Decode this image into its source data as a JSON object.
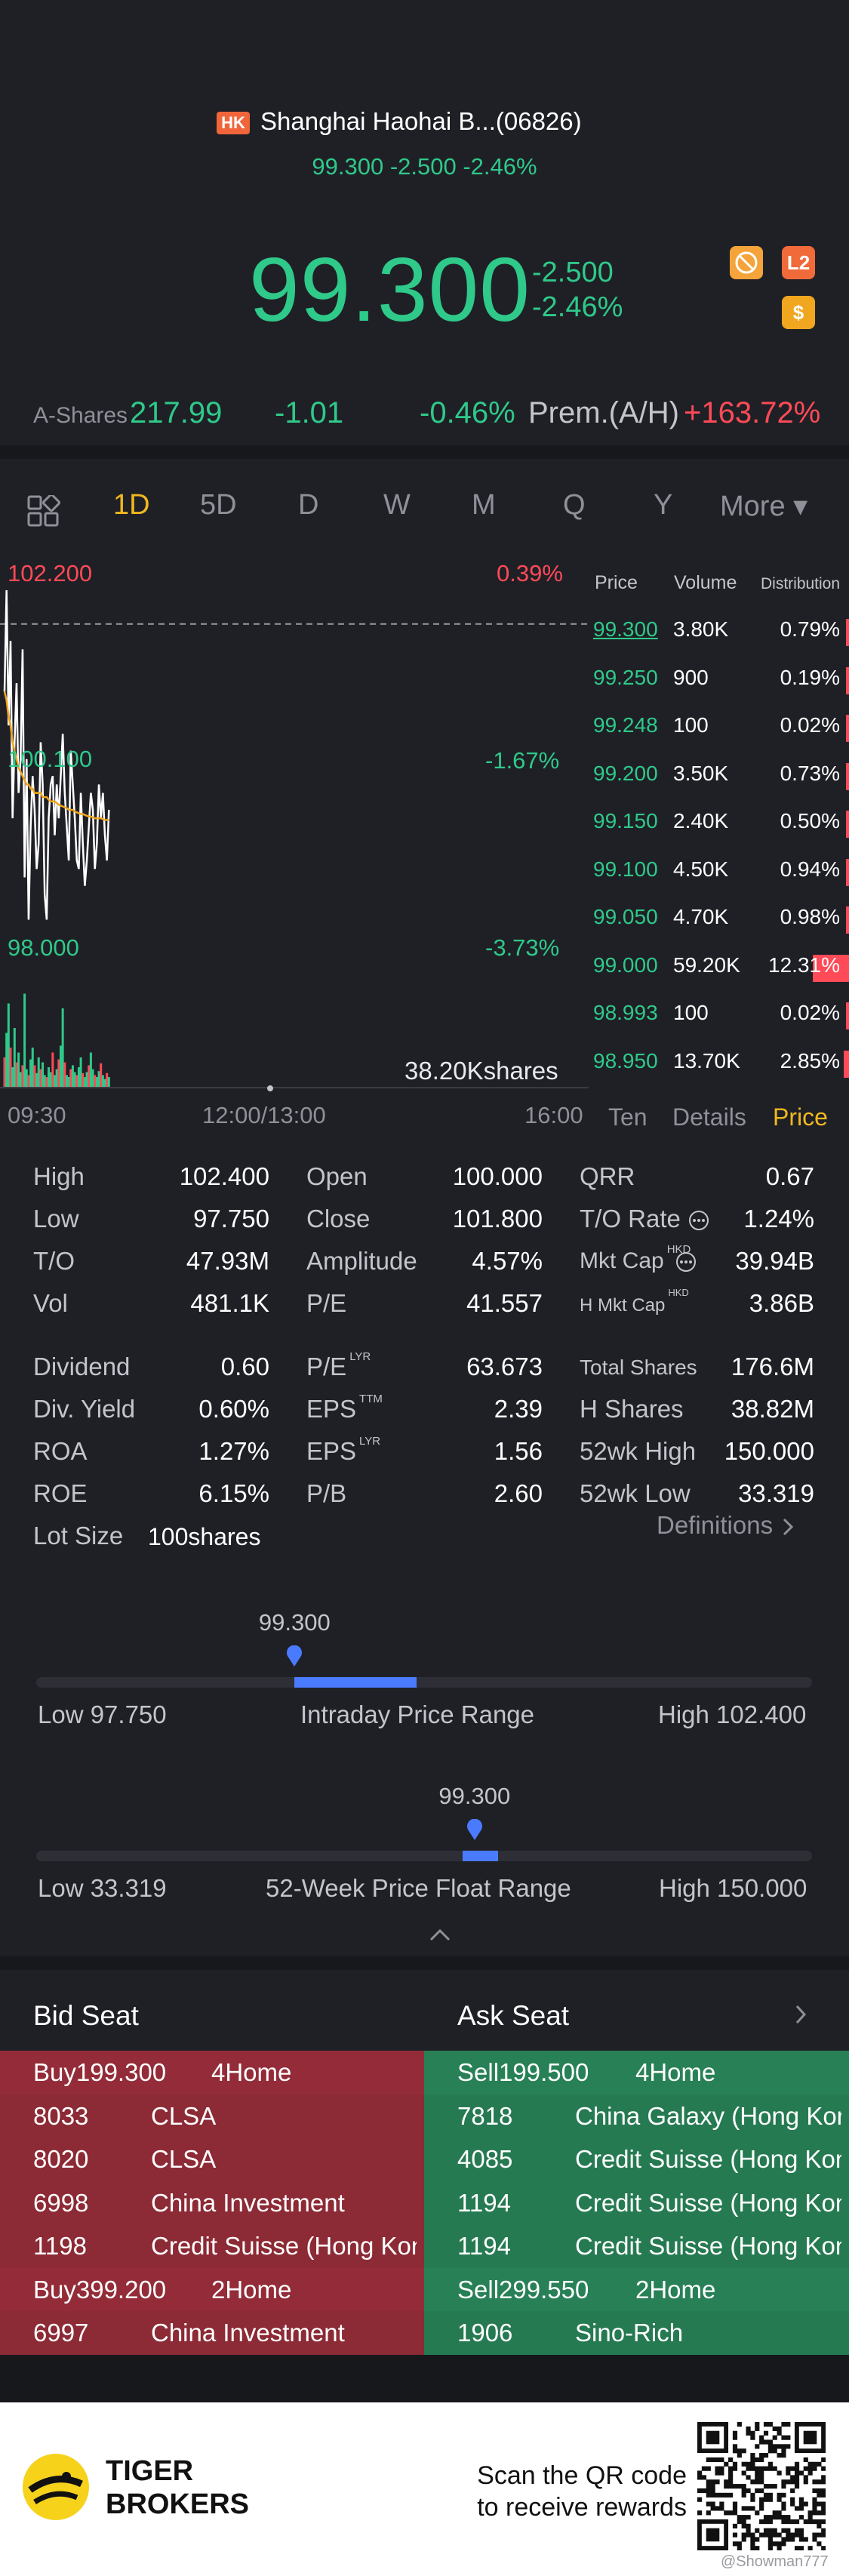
{
  "header": {
    "market_badge": "HK",
    "name": "Shanghai Haohai B...(06826)",
    "sub_quote": "99.300 -2.500 -2.46%",
    "price": "99.300",
    "change": "-2.500",
    "change_pct": "-2.46%",
    "badge_l2": "L2",
    "badge_dollar": "$",
    "ashares_label": "A-Shares",
    "ashares_price": "217.99",
    "ashares_change": "-1.01",
    "ashares_pct": "-0.46%",
    "premium_label": "Prem.(A/H)",
    "premium_value": "+163.72%"
  },
  "tabs": [
    {
      "label": "1D",
      "active": true
    },
    {
      "label": "5D",
      "active": false
    },
    {
      "label": "D",
      "active": false
    },
    {
      "label": "W",
      "active": false
    },
    {
      "label": "M",
      "active": false
    },
    {
      "label": "Q",
      "active": false
    },
    {
      "label": "Y",
      "active": false
    },
    {
      "label": "More ▾",
      "active": false
    }
  ],
  "chart_data": {
    "type": "line",
    "y_labels": {
      "high": "102.200",
      "mid": "100.100",
      "low": "98.000"
    },
    "pct_labels": {
      "high": "0.39%",
      "mid": "-1.67%",
      "low": "-3.73%"
    },
    "time_labels": [
      "09:30",
      "12:00/13:00",
      "16:00"
    ],
    "ylim": [
      98.0,
      102.2
    ],
    "prev_close": 101.8,
    "price_series": [
      101.0,
      102.2,
      100.6,
      101.6,
      99.5,
      100.4,
      101.1,
      99.8,
      100.2,
      101.5,
      98.8,
      100.2,
      98.3,
      99.4,
      100.0,
      99.6,
      98.9,
      99.2,
      100.4,
      99.9,
      98.6,
      98.3,
      99.5,
      99.9,
      100.0,
      99.3,
      99.9,
      99.5,
      100.0,
      100.5,
      99.8,
      99.4,
      99.0,
      100.3,
      99.9,
      99.5,
      99.0,
      98.9,
      99.8,
      99.2,
      98.7,
      99.0,
      99.4,
      99.8,
      99.6,
      98.9,
      99.2,
      99.9,
      99.5,
      99.8,
      99.3,
      99.0,
      99.6
    ],
    "avg_series": [
      101.0,
      100.9,
      100.7,
      100.6,
      100.4,
      100.3,
      100.2,
      100.1,
      100.05,
      100.0,
      99.95,
      99.9,
      99.9,
      99.85,
      99.85,
      99.8,
      99.8,
      99.8,
      99.8,
      99.75,
      99.75,
      99.75,
      99.72,
      99.7,
      99.7,
      99.7,
      99.68,
      99.66,
      99.65,
      99.64,
      99.63,
      99.62,
      99.6,
      99.6,
      99.6,
      99.58,
      99.57,
      99.56,
      99.55,
      99.55,
      99.54,
      99.53,
      99.52,
      99.52,
      99.51,
      99.5,
      99.5,
      99.5,
      99.5,
      99.49,
      99.48,
      99.48,
      99.48
    ],
    "volume_label": "38.20Kshares"
  },
  "orderbook": {
    "headers": {
      "price": "Price",
      "volume": "Volume",
      "distribution": "Distribution"
    },
    "rows": [
      {
        "price": "99.300",
        "volume": "3.80K",
        "dist": "0.79%",
        "frac": 0.03,
        "current": true
      },
      {
        "price": "99.250",
        "volume": "900",
        "dist": "0.19%",
        "frac": 0.01,
        "current": false
      },
      {
        "price": "99.248",
        "volume": "100",
        "dist": "0.02%",
        "frac": 0.005,
        "current": false
      },
      {
        "price": "99.200",
        "volume": "3.50K",
        "dist": "0.73%",
        "frac": 0.03,
        "current": false
      },
      {
        "price": "99.150",
        "volume": "2.40K",
        "dist": "0.50%",
        "frac": 0.02,
        "current": false
      },
      {
        "price": "99.100",
        "volume": "4.50K",
        "dist": "0.94%",
        "frac": 0.035,
        "current": false
      },
      {
        "price": "99.050",
        "volume": "4.70K",
        "dist": "0.98%",
        "frac": 0.035,
        "current": false
      },
      {
        "price": "99.000",
        "volume": "59.20K",
        "dist": "12.31%",
        "frac": 0.4,
        "current": false
      },
      {
        "price": "98.993",
        "volume": "100",
        "dist": "0.02%",
        "frac": 0.005,
        "current": false
      },
      {
        "price": "98.950",
        "volume": "13.70K",
        "dist": "2.85%",
        "frac": 0.06,
        "current": false
      }
    ],
    "tabs": [
      "Ten",
      "Details",
      "Price"
    ]
  },
  "stats": {
    "high_l": "High",
    "high_v": "102.400",
    "low_l": "Low",
    "low_v": "97.750",
    "to_l": "T/O",
    "to_v": "47.93M",
    "vol_l": "Vol",
    "vol_v": "481.1K",
    "open_l": "Open",
    "open_v": "100.000",
    "close_l": "Close",
    "close_v": "101.800",
    "amp_l": "Amplitude",
    "amp_v": "4.57%",
    "pe_l": "P/E",
    "pe_v": "41.557",
    "qrr_l": "QRR",
    "qrr_v": "0.67",
    "torate_l": "T/O Rate",
    "torate_v": "1.24%",
    "mktcap_l": "Mkt Cap",
    "mktcap_sup": "HKD",
    "mktcap_v": "39.94B",
    "hmktcap_l": "H Mkt Cap",
    "hmktcap_sup": "HKD",
    "hmktcap_v": "3.86B",
    "div_l": "Dividend",
    "div_v": "0.60",
    "divy_l": "Div. Yield",
    "divy_v": "0.60%",
    "roa_l": "ROA",
    "roa_v": "1.27%",
    "roe_l": "ROE",
    "roe_v": "6.15%",
    "lot_l": "Lot Size",
    "lot_v": "100shares",
    "pelyr_l": "P/E",
    "pelyr_sup": "LYR",
    "pelyr_v": "63.673",
    "epsttm_l": "EPS",
    "epsttm_sup": "TTM",
    "epsttm_v": "2.39",
    "epslyr_l": "EPS",
    "epslyr_sup": "LYR",
    "epslyr_v": "1.56",
    "pb_l": "P/B",
    "pb_v": "2.60",
    "tshares_l": "Total Shares",
    "tshares_v": "176.6M",
    "hshares_l": "H Shares",
    "hshares_v": "38.82M",
    "wkhigh_l": "52wk High",
    "wkhigh_v": "150.000",
    "wklow_l": "52wk Low",
    "wklow_v": "33.319",
    "definitions": "Definitions"
  },
  "ranges": {
    "intraday": {
      "current": "99.300",
      "low": "Low 97.750",
      "title": "Intraday Price Range",
      "high": "High 102.400",
      "pos": 0.333,
      "fill_end": 0.49
    },
    "week52": {
      "current": "99.300",
      "low": "Low 33.319",
      "title": "52-Week Price Float Range",
      "high": "High 150.000",
      "pos": 0.565,
      "fill_start": 0.55,
      "fill_end": 0.595
    }
  },
  "brokers": {
    "bid_title": "Bid Seat",
    "ask_title": "Ask Seat",
    "bid": [
      {
        "c1": "Buy1",
        "c1b": "99.300",
        "c2": "4Home",
        "header": true
      },
      {
        "c1": "8033",
        "c2": "CLSA"
      },
      {
        "c1": "8020",
        "c2": "CLSA"
      },
      {
        "c1": "6998",
        "c2": "China Investment"
      },
      {
        "c1": "1198",
        "c2": "Credit Suisse (Hong Kong)"
      },
      {
        "c1": "Buy3",
        "c1b": "99.200",
        "c2": "2Home",
        "header": true
      },
      {
        "c1": "6997",
        "c2": "China Investment"
      }
    ],
    "ask": [
      {
        "c1": "Sell1",
        "c1b": "99.500",
        "c2": "4Home",
        "header": true
      },
      {
        "c1": "7818",
        "c2": "China Galaxy (Hong Kong)"
      },
      {
        "c1": "4085",
        "c2": "Credit Suisse (Hong Kong)"
      },
      {
        "c1": "1194",
        "c2": "Credit Suisse (Hong Kong)"
      },
      {
        "c1": "1194",
        "c2": "Credit Suisse (Hong Kong)"
      },
      {
        "c1": "Sell2",
        "c1b": "99.550",
        "c2": "2Home",
        "header": true
      },
      {
        "c1": "1906",
        "c2": "Sino-Rich"
      }
    ]
  },
  "footer": {
    "brand_line1": "TIGER",
    "brand_line2": "BROKERS",
    "qr_line1": "Scan the QR code",
    "qr_line2": "to receive rewards",
    "watermark": "@Showman777"
  }
}
